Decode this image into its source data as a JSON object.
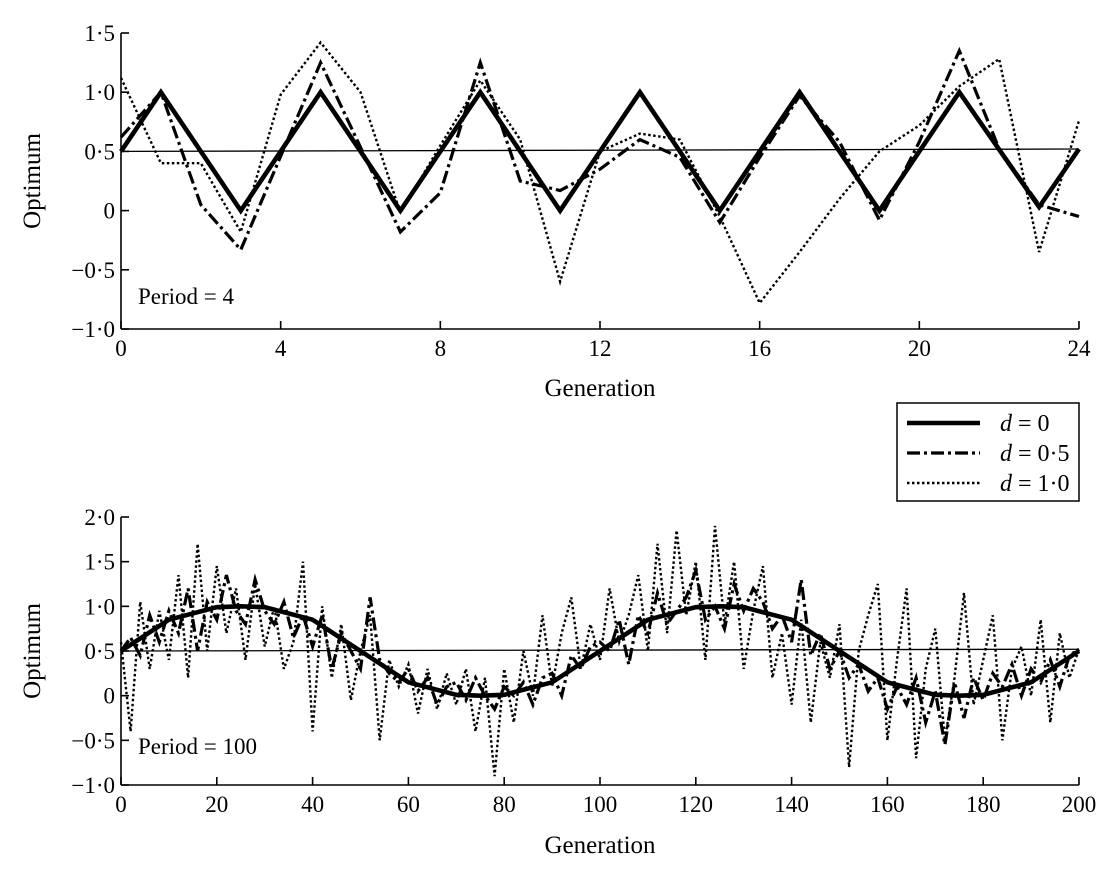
{
  "chart_data": [
    {
      "type": "line",
      "annotation": "Period = 4",
      "xlabel": "Generation",
      "ylabel": "Optimum",
      "xlim": [
        0,
        24
      ],
      "ylim": [
        -1.0,
        1.5
      ],
      "x_ticks": [
        0,
        4,
        8,
        12,
        16,
        20,
        24
      ],
      "x_tick_labels": [
        "0",
        "4",
        "8",
        "12",
        "16",
        "20",
        "24"
      ],
      "y_ticks": [
        1.5,
        1.0,
        0.5,
        0,
        -0.5,
        -1.0
      ],
      "y_tick_labels": [
        "1·5",
        "1·0",
        "0·5",
        "0",
        "−0·5",
        "−1·0"
      ],
      "reference_line": {
        "x": [
          0,
          24
        ],
        "y": [
          0.5,
          0.52
        ]
      },
      "series": [
        {
          "name": "d = 0",
          "style": "solid",
          "x": [
            0,
            1,
            3,
            5,
            7,
            9,
            11,
            13,
            15,
            17,
            19,
            21,
            23,
            24
          ],
          "y": [
            0.5,
            1.0,
            0,
            1.0,
            0,
            1.0,
            0,
            1.0,
            0,
            1.0,
            0,
            1.0,
            0.03,
            0.52
          ]
        },
        {
          "name": "d = 0·5",
          "style": "dashdot",
          "x": [
            0,
            1,
            2,
            3,
            5,
            7,
            8,
            9,
            10,
            11,
            12,
            13,
            14,
            15,
            16,
            17,
            18,
            19,
            20,
            21,
            22,
            23,
            24
          ],
          "y": [
            0.62,
            1.0,
            0.05,
            -0.33,
            1.25,
            -0.18,
            0.15,
            1.25,
            0.25,
            0.17,
            0.35,
            0.6,
            0.45,
            -0.1,
            0.45,
            0.97,
            0.58,
            -0.08,
            0.58,
            1.35,
            0.52,
            0.05,
            -0.05
          ]
        },
        {
          "name": "d = 1·0",
          "style": "dotted",
          "x": [
            0,
            1,
            2,
            3,
            4,
            5,
            6,
            7,
            8,
            9,
            10,
            11,
            12,
            13,
            14,
            15,
            16,
            17,
            18,
            19,
            20,
            21,
            22,
            23,
            24
          ],
          "y": [
            1.12,
            0.4,
            0.4,
            -0.18,
            0.98,
            1.42,
            1.0,
            -0.02,
            0.55,
            1.1,
            0.6,
            -0.6,
            0.5,
            0.65,
            0.6,
            -0.05,
            -0.78,
            -0.35,
            0.1,
            0.5,
            0.72,
            1.05,
            1.28,
            -0.35,
            0.76
          ]
        }
      ]
    },
    {
      "type": "line",
      "annotation": "Period = 100",
      "xlabel": "Generation",
      "ylabel": "Optimum",
      "xlim": [
        0,
        200
      ],
      "ylim": [
        -1.0,
        2.0
      ],
      "x_ticks": [
        0,
        20,
        40,
        60,
        80,
        100,
        120,
        140,
        160,
        180,
        200
      ],
      "x_tick_labels": [
        "0",
        "20",
        "40",
        "60",
        "80",
        "100",
        "120",
        "140",
        "160",
        "180",
        "200"
      ],
      "y_ticks": [
        2.0,
        1.5,
        1.0,
        0.5,
        0,
        -0.5,
        -1.0
      ],
      "y_tick_labels": [
        "2·0",
        "1·5",
        "1·0",
        "0·5",
        "0",
        "−0·5",
        "−1·0"
      ],
      "reference_line": {
        "x": [
          0,
          200
        ],
        "y": [
          0.5,
          0.52
        ]
      },
      "series": [
        {
          "name": "d = 0",
          "style": "solid",
          "x": [
            0,
            10,
            20,
            25,
            30,
            40,
            50,
            60,
            70,
            75,
            80,
            90,
            100,
            110,
            120,
            125,
            130,
            140,
            150,
            160,
            170,
            175,
            180,
            190,
            200
          ],
          "y": [
            0.5,
            0.85,
            0.99,
            1.0,
            0.99,
            0.85,
            0.5,
            0.15,
            0.01,
            0.0,
            0.01,
            0.15,
            0.5,
            0.85,
            0.99,
            1.0,
            0.99,
            0.85,
            0.5,
            0.15,
            0.01,
            0.0,
            0.01,
            0.15,
            0.5
          ]
        },
        {
          "name": "d = 0·5",
          "style": "dashdot",
          "x": [
            0,
            2,
            4,
            6,
            8,
            10,
            12,
            14,
            16,
            18,
            20,
            22,
            24,
            26,
            28,
            30,
            32,
            34,
            36,
            38,
            40,
            42,
            44,
            46,
            48,
            50,
            52,
            54,
            56,
            58,
            60,
            62,
            64,
            66,
            68,
            70,
            72,
            74,
            76,
            78,
            80,
            82,
            84,
            86,
            88,
            90,
            92,
            94,
            96,
            98,
            100,
            102,
            104,
            106,
            108,
            110,
            112,
            114,
            116,
            118,
            120,
            122,
            124,
            126,
            128,
            130,
            132,
            134,
            136,
            138,
            140,
            142,
            144,
            146,
            148,
            150,
            152,
            154,
            156,
            158,
            160,
            162,
            164,
            166,
            168,
            170,
            172,
            174,
            176,
            178,
            180,
            182,
            184,
            186,
            188,
            190,
            192,
            194,
            196,
            198,
            200
          ],
          "y": [
            0.5,
            0.65,
            0.45,
            0.9,
            0.6,
            0.95,
            0.7,
            1.2,
            0.5,
            1.05,
            0.85,
            1.35,
            0.95,
            0.8,
            1.3,
            0.95,
            0.8,
            1.05,
            0.65,
            0.9,
            0.55,
            0.9,
            0.3,
            0.7,
            0.5,
            0.3,
            1.1,
            0.4,
            0.25,
            0.15,
            0.3,
            0.05,
            0.2,
            -0.1,
            0.1,
            0.15,
            -0.05,
            0.2,
            0.0,
            -0.15,
            0.1,
            0.0,
            0.15,
            -0.1,
            0.2,
            0.25,
            0.0,
            0.45,
            0.3,
            0.55,
            0.6,
            0.5,
            0.85,
            0.35,
            0.9,
            0.7,
            1.15,
            0.8,
            0.95,
            1.1,
            1.4,
            0.85,
            1.0,
            0.75,
            1.25,
            0.95,
            1.2,
            1.05,
            0.75,
            0.9,
            0.6,
            1.3,
            0.45,
            0.7,
            0.3,
            0.5,
            0.2,
            0.35,
            0.05,
            0.2,
            -0.15,
            0.1,
            -0.1,
            0.2,
            -0.3,
            0.05,
            -0.55,
            0.15,
            -0.25,
            0.2,
            -0.05,
            0.25,
            0.1,
            0.35,
            0.0,
            0.3,
            0.15,
            0.4,
            0.1,
            0.45,
            0.52
          ]
        },
        {
          "name": "d = 1·0",
          "style": "dotted",
          "x": [
            0,
            2,
            4,
            6,
            8,
            10,
            12,
            14,
            16,
            18,
            20,
            22,
            24,
            26,
            28,
            30,
            32,
            34,
            36,
            38,
            40,
            42,
            44,
            46,
            48,
            50,
            52,
            54,
            56,
            58,
            60,
            62,
            64,
            66,
            68,
            70,
            72,
            74,
            76,
            78,
            80,
            82,
            84,
            86,
            88,
            90,
            92,
            94,
            96,
            98,
            100,
            102,
            104,
            106,
            108,
            110,
            112,
            114,
            116,
            118,
            120,
            122,
            124,
            126,
            128,
            130,
            132,
            134,
            136,
            138,
            140,
            142,
            144,
            146,
            148,
            150,
            152,
            154,
            156,
            158,
            160,
            162,
            164,
            166,
            168,
            170,
            172,
            174,
            176,
            178,
            180,
            182,
            184,
            186,
            188,
            190,
            192,
            194,
            196,
            198,
            200
          ],
          "y": [
            0.6,
            -0.4,
            1.05,
            0.3,
            0.95,
            0.4,
            1.35,
            0.2,
            1.7,
            0.5,
            1.45,
            0.7,
            1.2,
            0.4,
            1.25,
            0.55,
            1.0,
            0.3,
            0.6,
            1.5,
            -0.4,
            1.0,
            0.2,
            0.8,
            -0.05,
            0.5,
            0.9,
            -0.5,
            0.4,
            0.1,
            0.35,
            -0.2,
            0.3,
            -0.15,
            0.25,
            -0.1,
            0.3,
            -0.4,
            0.2,
            -0.9,
            0.3,
            -0.3,
            0.5,
            0.0,
            0.9,
            0.1,
            0.7,
            1.1,
            0.3,
            0.8,
            0.4,
            1.2,
            0.6,
            0.9,
            1.35,
            0.5,
            1.7,
            0.7,
            1.85,
            0.9,
            1.5,
            0.4,
            1.9,
            0.8,
            1.5,
            0.3,
            0.95,
            1.45,
            0.2,
            0.7,
            -0.1,
            0.85,
            -0.3,
            0.6,
            0.2,
            0.8,
            -0.8,
            0.5,
            0.9,
            1.25,
            -0.5,
            0.4,
            1.2,
            -0.7,
            0.3,
            0.75,
            -0.5,
            0.2,
            1.15,
            -0.1,
            0.4,
            0.9,
            -0.5,
            0.3,
            0.55,
            0.0,
            0.85,
            -0.3,
            0.7,
            0.2,
            0.52
          ]
        }
      ]
    }
  ],
  "legend": {
    "entries": [
      {
        "var": "d",
        "text": " = 0",
        "style": "solid"
      },
      {
        "var": "d",
        "text": " = 0·5",
        "style": "dashdot"
      },
      {
        "var": "d",
        "text": " = 1·0",
        "style": "dotted"
      }
    ]
  }
}
